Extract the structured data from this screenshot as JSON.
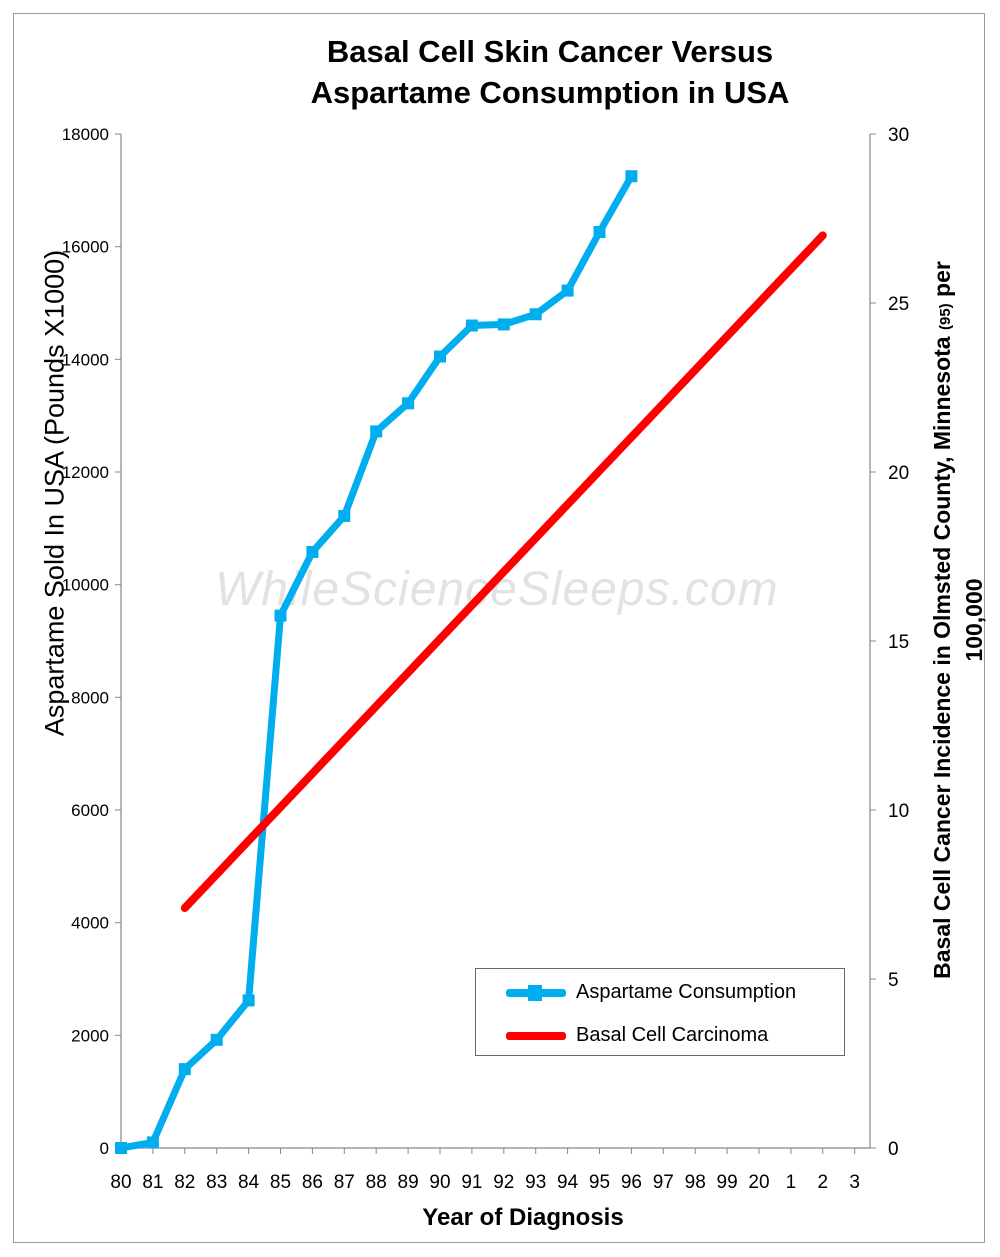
{
  "title_line1": "Basal Cell Skin Cancer Versus",
  "title_line2": "Aspartame Consumption  in USA",
  "watermark": "WhileScienceSleeps.com",
  "chart_data": {
    "type": "line",
    "title": "Basal Cell Skin Cancer Versus Aspartame Consumption  in USA",
    "xlabel": "Year of Diagnosis",
    "ylabel_left": "Aspartame Sold In USA  (Pounds X1000)",
    "ylabel_right_main": "Basal Cell Cancer Incidence in Olmsted County, Minnesota",
    "ylabel_right_sup": "(95)",
    "ylabel_right_end": "per",
    "ylabel_right_line2": "100,000",
    "categories": [
      "80",
      "81",
      "82",
      "83",
      "84",
      "85",
      "86",
      "87",
      "88",
      "89",
      "90",
      "91",
      "92",
      "93",
      "94",
      "95",
      "96",
      "97",
      "98",
      "99",
      "20",
      "1",
      "2",
      "3"
    ],
    "y_left_lim": [
      0,
      18000
    ],
    "y_left_ticks": [
      0,
      2000,
      4000,
      6000,
      8000,
      10000,
      12000,
      14000,
      16000,
      18000
    ],
    "y_right_lim": [
      0,
      30
    ],
    "y_right_ticks": [
      0,
      5,
      10,
      15,
      20,
      25,
      30
    ],
    "grid": false,
    "legend_position": "bottom-right",
    "series": [
      {
        "name": "Aspartame Consumption",
        "axis": "left",
        "color": "#00AEEF",
        "marker": "square",
        "values": [
          0,
          100,
          1400,
          1920,
          2620,
          9450,
          10580,
          11220,
          12720,
          13220,
          14050,
          14600,
          14620,
          14800,
          15220,
          16260,
          17250,
          null,
          null,
          null,
          null,
          null,
          null,
          null
        ]
      },
      {
        "name": "Basal Cell Carcinoma",
        "axis": "right",
        "color": "#FF0000",
        "marker": "none",
        "values": [
          null,
          null,
          7.1,
          null,
          null,
          null,
          null,
          null,
          null,
          null,
          null,
          null,
          null,
          null,
          null,
          null,
          null,
          null,
          null,
          null,
          null,
          null,
          27.0,
          null
        ]
      }
    ]
  }
}
